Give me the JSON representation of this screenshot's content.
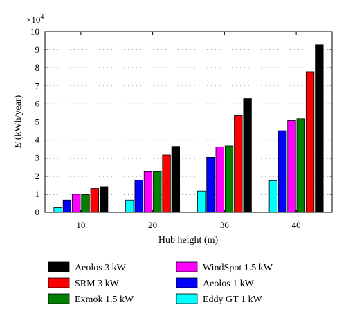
{
  "chart_data": {
    "type": "bar",
    "title": "",
    "xlabel": "Hub height (m)",
    "ylabel_symbol": "E",
    "ylabel_unit": "(kWh/year)",
    "y_multiplier": "×10",
    "y_multiplier_exp": "4",
    "categories": [
      "10",
      "20",
      "30",
      "40"
    ],
    "ylim": [
      0,
      10
    ],
    "yticks": [
      "0",
      "1",
      "2",
      "3",
      "4",
      "5",
      "6",
      "7",
      "8",
      "9",
      "10"
    ],
    "grid": "dotted horizontal",
    "legend_placement": "bottom",
    "series": [
      {
        "name": "Eddy GT 1 kW",
        "color": "#00ffff",
        "values": [
          0.25,
          0.68,
          1.18,
          1.75
        ]
      },
      {
        "name": "Aeolos 1 kW",
        "color": "#0000ff",
        "values": [
          0.68,
          1.78,
          3.05,
          4.52
        ]
      },
      {
        "name": "WindSpot 1.5 kW",
        "color": "#ff00ff",
        "values": [
          1.0,
          2.25,
          3.62,
          5.08
        ]
      },
      {
        "name": "Exmok 1.5 kW",
        "color": "#008000",
        "values": [
          0.98,
          2.25,
          3.68,
          5.18
        ]
      },
      {
        "name": "SRM 3 kW",
        "color": "#ff0000",
        "values": [
          1.32,
          3.18,
          5.35,
          7.78
        ]
      },
      {
        "name": "Aeolos 3 kW",
        "color": "#000000",
        "values": [
          1.42,
          3.65,
          6.3,
          9.28
        ]
      }
    ],
    "legend_order": [
      "Aeolos 3 kW",
      "SRM 3 kW",
      "Exmok 1.5 kW",
      "WindSpot 1.5 kW",
      "Aeolos 1 kW",
      "Eddy GT 1 kW"
    ]
  }
}
